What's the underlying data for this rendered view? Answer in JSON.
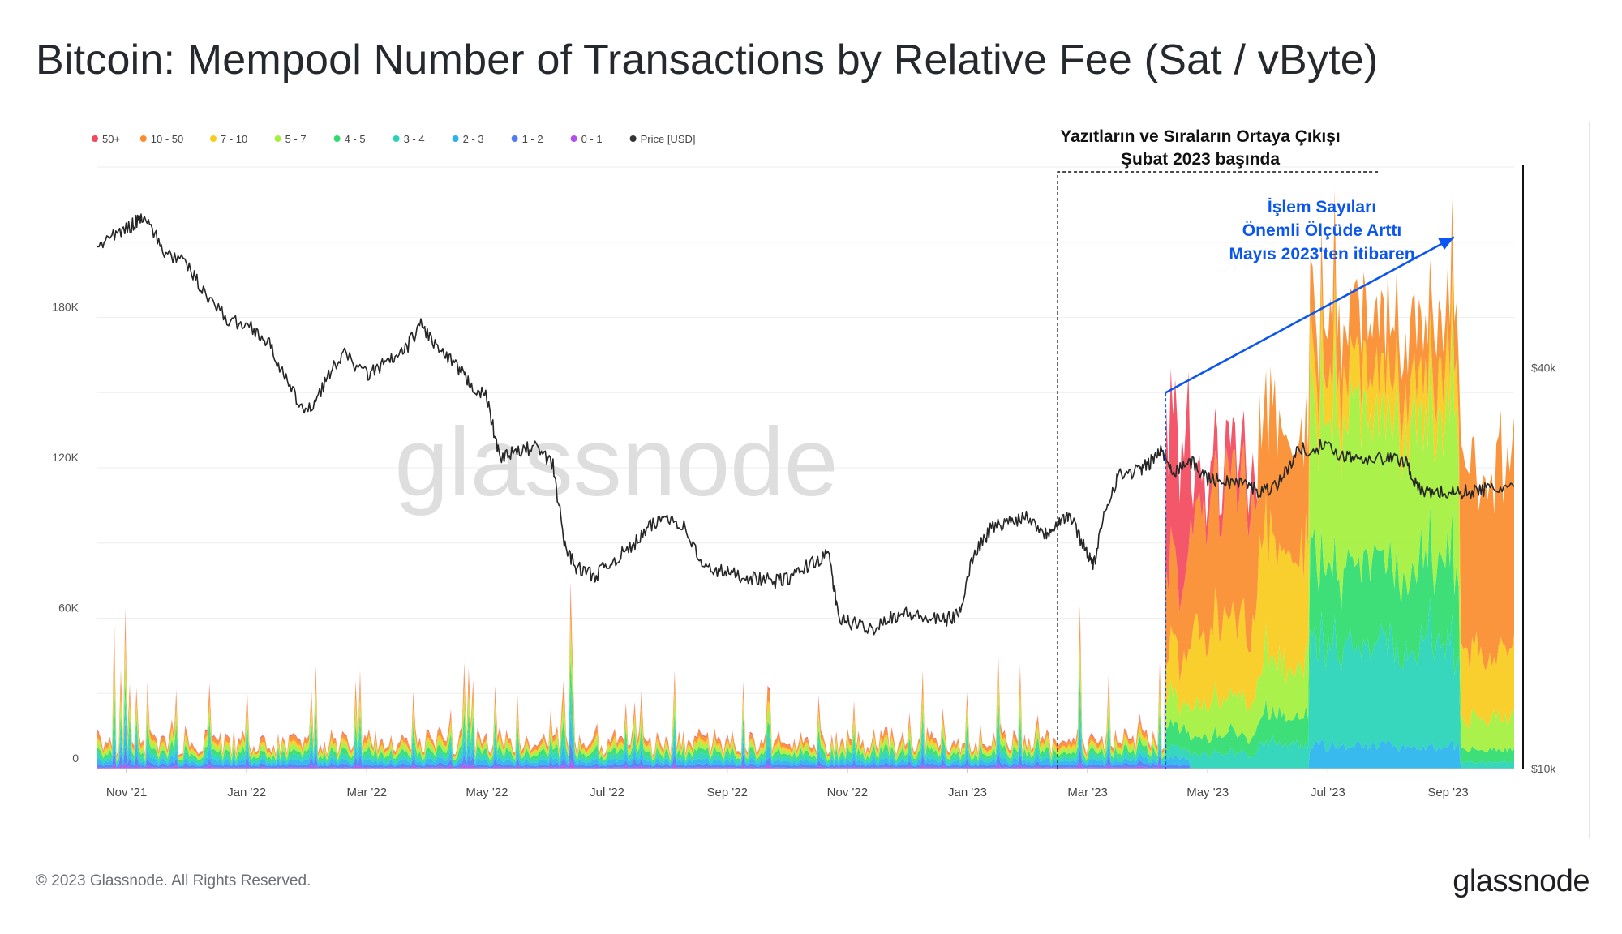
{
  "page": {
    "title": "Bitcoin: Mempool Number of Transactions by Relative Fee (Sat / vByte)",
    "footer_copyright": "© 2023 Glassnode. All Rights Reserved.",
    "footer_logo": "glassnode",
    "watermark": "glassnode"
  },
  "chart_data": {
    "type": "area",
    "title": "Bitcoin: Mempool Number of Transactions by Relative Fee (Sat / vByte)",
    "x_ticks": [
      "Nov '21",
      "Jan '22",
      "Mar '22",
      "May '22",
      "Jul '22",
      "Sep '22",
      "Nov '22",
      "Jan '23",
      "Mar '23",
      "May '23",
      "Jul '23",
      "Sep '23"
    ],
    "x_range_months": [
      0,
      23.6
    ],
    "x_tick_months": [
      0.5,
      2.5,
      4.5,
      6.5,
      8.5,
      10.5,
      12.5,
      14.5,
      16.5,
      18.5,
      20.5,
      22.5
    ],
    "y_left": {
      "range": [
        0,
        240000
      ],
      "ticks": [
        0,
        60000,
        120000,
        180000
      ],
      "tick_labels": [
        "0",
        "60K",
        "120K",
        "180K"
      ]
    },
    "y_right": {
      "scale": "log",
      "range": [
        10000,
        80000
      ],
      "ticks": [
        10000,
        40000
      ],
      "tick_labels": [
        "$10k",
        "$40k"
      ]
    },
    "legend": {
      "position": "top-left",
      "items": [
        {
          "name": "50+",
          "color": "#f2495c"
        },
        {
          "name": "10 - 50",
          "color": "#fa8c2e"
        },
        {
          "name": "7 - 10",
          "color": "#f9cb1c"
        },
        {
          "name": "5 - 7",
          "color": "#a4f03c"
        },
        {
          "name": "4 - 5",
          "color": "#2edc6e"
        },
        {
          "name": "3 - 4",
          "color": "#25d4b6"
        },
        {
          "name": "2 - 3",
          "color": "#27b4ee"
        },
        {
          "name": "1 - 2",
          "color": "#4d7cf5"
        },
        {
          "name": "0 - 1",
          "color": "#b04ef2"
        },
        {
          "name": "Price [USD]",
          "color": "#333333"
        }
      ]
    },
    "stack_order": [
      "0 - 1",
      "1 - 2",
      "2 - 3",
      "3 - 4",
      "4 - 5",
      "5 - 7",
      "7 - 10",
      "10 - 50",
      "50+"
    ],
    "segments": [
      {
        "from": 0.0,
        "to": 17.8,
        "mix": {
          "0 - 1": 0.04,
          "1 - 2": 0.1,
          "2 - 3": 0.14,
          "3 - 4": 0.15,
          "4 - 5": 0.14,
          "5 - 7": 0.15,
          "7 - 10": 0.1,
          "10 - 50": 0.15,
          "50+": 0.03
        },
        "base": 12000,
        "spike": 42000
      },
      {
        "from": 17.8,
        "to": 18.2,
        "mix": {
          "50+": 0.42,
          "10 - 50": 0.25,
          "7 - 10": 0.13,
          "5 - 7": 0.08,
          "4 - 5": 0.06,
          "3 - 4": 0.03,
          "2 - 3": 0.02,
          "1 - 2": 0.01
        },
        "base": 120000,
        "spike": 175000
      },
      {
        "from": 18.2,
        "to": 19.3,
        "mix": {
          "50+": 0.1,
          "10 - 50": 0.42,
          "7 - 10": 0.25,
          "5 - 7": 0.12,
          "4 - 5": 0.06,
          "3 - 4": 0.05
        },
        "base": 110000,
        "spike": 150000
      },
      {
        "from": 19.3,
        "to": 20.2,
        "mix": {
          "10 - 50": 0.35,
          "7 - 10": 0.35,
          "5 - 7": 0.15,
          "4 - 5": 0.08,
          "3 - 4": 0.07
        },
        "base": 125000,
        "spike": 170000
      },
      {
        "from": 20.2,
        "to": 22.7,
        "mix": {
          "10 - 50": 0.12,
          "7 - 10": 0.1,
          "5 - 7": 0.33,
          "4 - 5": 0.18,
          "3 - 4": 0.22,
          "2 - 3": 0.05
        },
        "base": 170000,
        "spike": 215000
      },
      {
        "from": 22.7,
        "to": 23.6,
        "mix": {
          "10 - 50": 0.62,
          "7 - 10": 0.22,
          "5 - 7": 0.1,
          "4 - 5": 0.04,
          "3 - 4": 0.02
        },
        "base": 120000,
        "spike": 140000
      }
    ],
    "price_series": [
      {
        "m": 0.0,
        "p": 61000
      },
      {
        "m": 0.3,
        "p": 63000
      },
      {
        "m": 0.6,
        "p": 65500
      },
      {
        "m": 0.8,
        "p": 68000
      },
      {
        "m": 1.1,
        "p": 60000
      },
      {
        "m": 1.5,
        "p": 57000
      },
      {
        "m": 1.8,
        "p": 52000
      },
      {
        "m": 2.2,
        "p": 47000
      },
      {
        "m": 2.6,
        "p": 46000
      },
      {
        "m": 2.9,
        "p": 43000
      },
      {
        "m": 3.2,
        "p": 37500
      },
      {
        "m": 3.5,
        "p": 34000
      },
      {
        "m": 3.8,
        "p": 38000
      },
      {
        "m": 4.1,
        "p": 42000
      },
      {
        "m": 4.5,
        "p": 39000
      },
      {
        "m": 4.8,
        "p": 40500
      },
      {
        "m": 5.1,
        "p": 42000
      },
      {
        "m": 5.4,
        "p": 46500
      },
      {
        "m": 5.7,
        "p": 42500
      },
      {
        "m": 6.0,
        "p": 40000
      },
      {
        "m": 6.2,
        "p": 38000
      },
      {
        "m": 6.5,
        "p": 36000
      },
      {
        "m": 6.7,
        "p": 29500
      },
      {
        "m": 7.0,
        "p": 29800
      },
      {
        "m": 7.3,
        "p": 30500
      },
      {
        "m": 7.6,
        "p": 28500
      },
      {
        "m": 7.8,
        "p": 21500
      },
      {
        "m": 8.0,
        "p": 20000
      },
      {
        "m": 8.3,
        "p": 19500
      },
      {
        "m": 8.6,
        "p": 20500
      },
      {
        "m": 8.9,
        "p": 21500
      },
      {
        "m": 9.2,
        "p": 23000
      },
      {
        "m": 9.5,
        "p": 24000
      },
      {
        "m": 9.8,
        "p": 23000
      },
      {
        "m": 10.1,
        "p": 20000
      },
      {
        "m": 10.4,
        "p": 19800
      },
      {
        "m": 10.7,
        "p": 19500
      },
      {
        "m": 11.0,
        "p": 19300
      },
      {
        "m": 11.3,
        "p": 19100
      },
      {
        "m": 11.6,
        "p": 19400
      },
      {
        "m": 11.9,
        "p": 20400
      },
      {
        "m": 12.2,
        "p": 20900
      },
      {
        "m": 12.35,
        "p": 16800
      },
      {
        "m": 12.6,
        "p": 16500
      },
      {
        "m": 12.9,
        "p": 16200
      },
      {
        "m": 13.2,
        "p": 16900
      },
      {
        "m": 13.5,
        "p": 17100
      },
      {
        "m": 13.8,
        "p": 16800
      },
      {
        "m": 14.1,
        "p": 16700
      },
      {
        "m": 14.35,
        "p": 17000
      },
      {
        "m": 14.6,
        "p": 21000
      },
      {
        "m": 14.9,
        "p": 23000
      },
      {
        "m": 15.2,
        "p": 23500
      },
      {
        "m": 15.5,
        "p": 24000
      },
      {
        "m": 15.8,
        "p": 22500
      },
      {
        "m": 16.0,
        "p": 23500
      },
      {
        "m": 16.2,
        "p": 24000
      },
      {
        "m": 16.45,
        "p": 21500
      },
      {
        "m": 16.6,
        "p": 20200
      },
      {
        "m": 16.8,
        "p": 24500
      },
      {
        "m": 17.0,
        "p": 27500
      },
      {
        "m": 17.3,
        "p": 28000
      },
      {
        "m": 17.5,
        "p": 28500
      },
      {
        "m": 17.7,
        "p": 30000
      },
      {
        "m": 17.95,
        "p": 28000
      },
      {
        "m": 18.2,
        "p": 29000
      },
      {
        "m": 18.5,
        "p": 27200
      },
      {
        "m": 18.8,
        "p": 27000
      },
      {
        "m": 19.1,
        "p": 26800
      },
      {
        "m": 19.4,
        "p": 26000
      },
      {
        "m": 19.7,
        "p": 27000
      },
      {
        "m": 20.0,
        "p": 30000
      },
      {
        "m": 20.4,
        "p": 30500
      },
      {
        "m": 20.8,
        "p": 29500
      },
      {
        "m": 21.1,
        "p": 29300
      },
      {
        "m": 21.5,
        "p": 29200
      },
      {
        "m": 21.8,
        "p": 29000
      },
      {
        "m": 22.0,
        "p": 26200
      },
      {
        "m": 22.3,
        "p": 26000
      },
      {
        "m": 22.6,
        "p": 25900
      },
      {
        "m": 22.9,
        "p": 26100
      },
      {
        "m": 23.2,
        "p": 26300
      },
      {
        "m": 23.6,
        "p": 26500
      }
    ],
    "annotations": [
      {
        "id": "ordinals",
        "lines": [
          "Yazıtların ve Sıraların Ortaya Çıkışı",
          "Şubat 2023 başında"
        ],
        "start_month": 16.0,
        "color": "#111111",
        "style": "dashed-box"
      },
      {
        "id": "txcount",
        "lines": [
          "İşlem Sayıları",
          "Önemli Ölçüde Arttı",
          "Mayıs 2023'ten itibaren"
        ],
        "start_month": 17.8,
        "arrow_from": {
          "m": 17.8,
          "v": 150000
        },
        "arrow_to": {
          "m": 22.6,
          "v": 212000
        },
        "color": "#0b55f0",
        "style": "arrow"
      }
    ]
  }
}
